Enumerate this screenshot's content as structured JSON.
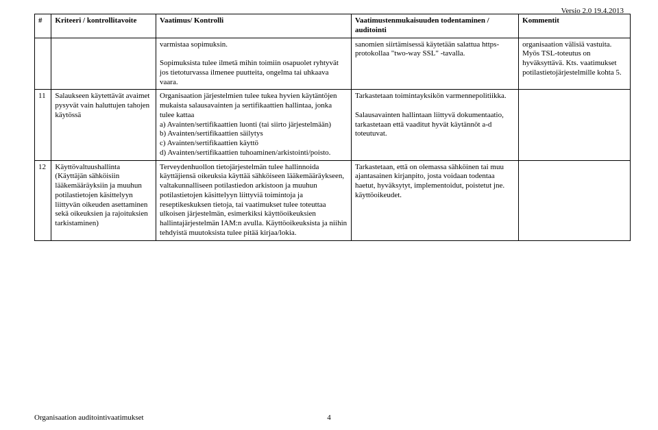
{
  "version_label": "Versio 2.0  19.4.2013",
  "columns": {
    "num": "#",
    "criteria": "Kriteeri / kontrollitavoite",
    "requirement": "Vaatimus/ Kontrolli",
    "verification": "Vaatimustenmukaisuuden todentaminen / auditointi",
    "comments": "Kommentit"
  },
  "rows": [
    {
      "num": "",
      "criteria": "",
      "requirement": "varmistaa sopimuksin.\n\nSopimuksista tulee ilmetä mihin toimiin osapuolet ryhtyvät jos tietoturvassa ilmenee puutteita, ongelma tai uhkaava vaara.",
      "verification": "sanomien siirtämisessä käytetään salattua https-protokollaa \"two-way SSL\" -tavalla.",
      "comments": "organisaation välisiä vastuita. Myös TSL-toteutus on hyväksyttävä. Kts. vaatimukset potilastietojärjestelmille kohta 5."
    },
    {
      "num": "11",
      "criteria": "Salaukseen käytettävät avaimet pysyvät vain haluttujen tahojen käytössä",
      "requirement": "Organisaation järjestelmien tulee tukea hyvien käytäntöjen mukaista salausavainten ja sertifikaattien hallintaa, jonka tulee kattaa\na) Avainten/sertifikaattien luonti (tai siirto järjestelmään)\nb) Avainten/sertifikaattien säilytys\nc) Avainten/sertifikaattien käyttö\nd) Avainten/sertifikaattien tuhoaminen/arkistointi/poisto.",
      "verification": "Tarkastetaan toimintayksikön varmennepolitiikka.\n\nSalausavainten hallintaan liittyvä dokumentaatio, tarkastetaan että vaaditut hyvät käytännöt a-d toteutuvat.",
      "comments": ""
    },
    {
      "num": "12",
      "criteria": "Käyttövaltuushallinta (Käyttäjän sähköisiin lääkemääräyksiin ja muuhun potilastietojen käsittelyyn liittyvän oikeuden asettaminen sekä oikeuksien ja rajoituksien tarkistaminen)",
      "requirement": "Terveydenhuollon tietojärjestelmän tulee hallinnoida käyttäjiensä oikeuksia käyttää sähköiseen lääkemääräykseen, valtakunnalliseen potilastiedon arkistoon ja muuhun potilastietojen käsittelyyn liittyviä toimintoja ja reseptikeskuksen tietoja, tai vaatimukset tulee toteuttaa ulkoisen järjestelmän, esimerkiksi käyttöoikeuksien hallintajärjestelmän IAM:n avulla. Käyttöoikeuksista ja niihin tehdyistä muutoksista tulee pitää kirjaa/lokia.",
      "verification": "Tarkastetaan, että on olemassa sähköinen tai muu ajantasainen kirjanpito, josta voidaan todentaa haetut, hyväksytyt, implementoidut, poistetut jne. käyttöoikeudet.",
      "comments": ""
    }
  ],
  "footer": {
    "left": "Organisaation auditointivaatimukset",
    "page": "4"
  }
}
